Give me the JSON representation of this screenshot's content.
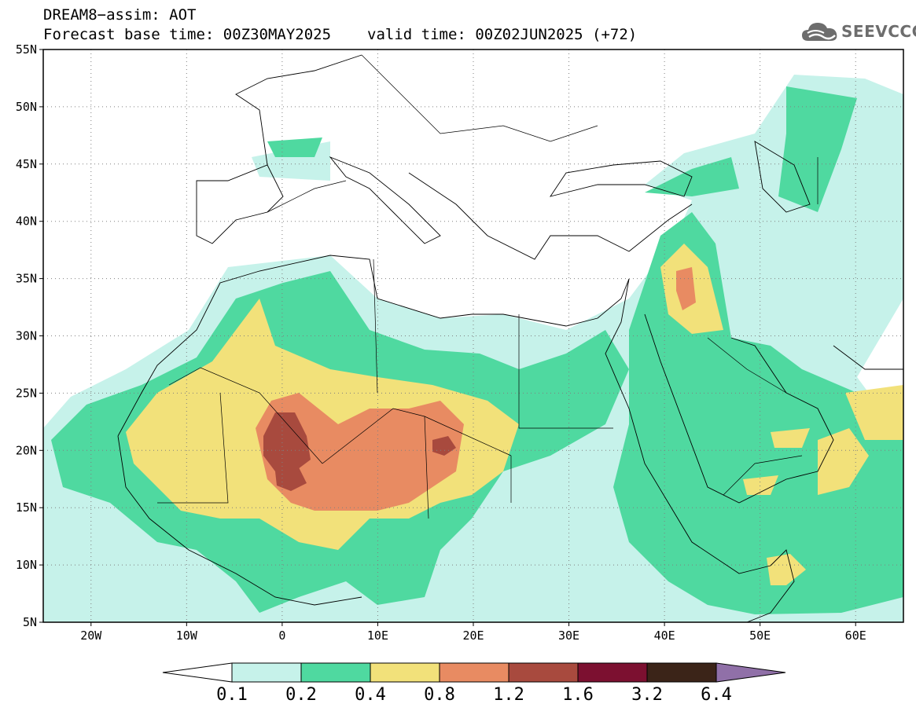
{
  "header": {
    "line1": "DREAM8−assim: AOT",
    "base_time": "Forecast base time: 00Z30MAY2025",
    "valid_time": "valid time: 00Z02JUN2025 (+72)"
  },
  "logo": {
    "text": "SEEVCCC",
    "icon": "cloud-icon"
  },
  "map": {
    "lon_range": [
      -25,
      65
    ],
    "lat_range": [
      5,
      55
    ],
    "lat_ticks": [
      {
        "value": 55,
        "label": "55N"
      },
      {
        "value": 50,
        "label": "50N"
      },
      {
        "value": 45,
        "label": "45N"
      },
      {
        "value": 40,
        "label": "40N"
      },
      {
        "value": 35,
        "label": "35N"
      },
      {
        "value": 30,
        "label": "30N"
      },
      {
        "value": 25,
        "label": "25N"
      },
      {
        "value": 20,
        "label": "20N"
      },
      {
        "value": 15,
        "label": "15N"
      },
      {
        "value": 10,
        "label": "10N"
      },
      {
        "value": 5,
        "label": "5N"
      }
    ],
    "lon_ticks": [
      {
        "value": -20,
        "label": "20W"
      },
      {
        "value": -10,
        "label": "10W"
      },
      {
        "value": 0,
        "label": "0"
      },
      {
        "value": 10,
        "label": "10E"
      },
      {
        "value": 20,
        "label": "20E"
      },
      {
        "value": 30,
        "label": "30E"
      },
      {
        "value": 40,
        "label": "40E"
      },
      {
        "value": 50,
        "label": "50E"
      },
      {
        "value": 60,
        "label": "60E"
      }
    ]
  },
  "colorbar": {
    "levels": [
      "0.1",
      "0.2",
      "0.4",
      "0.8",
      "1.2",
      "1.6",
      "3.2",
      "6.4"
    ],
    "colors": [
      "#c6f2ea",
      "#4fd9a0",
      "#f2e17a",
      "#e88b62",
      "#a84a3e",
      "#7c1030",
      "#3b2418",
      "#9070a8"
    ],
    "under_color": "#ffffff"
  }
}
